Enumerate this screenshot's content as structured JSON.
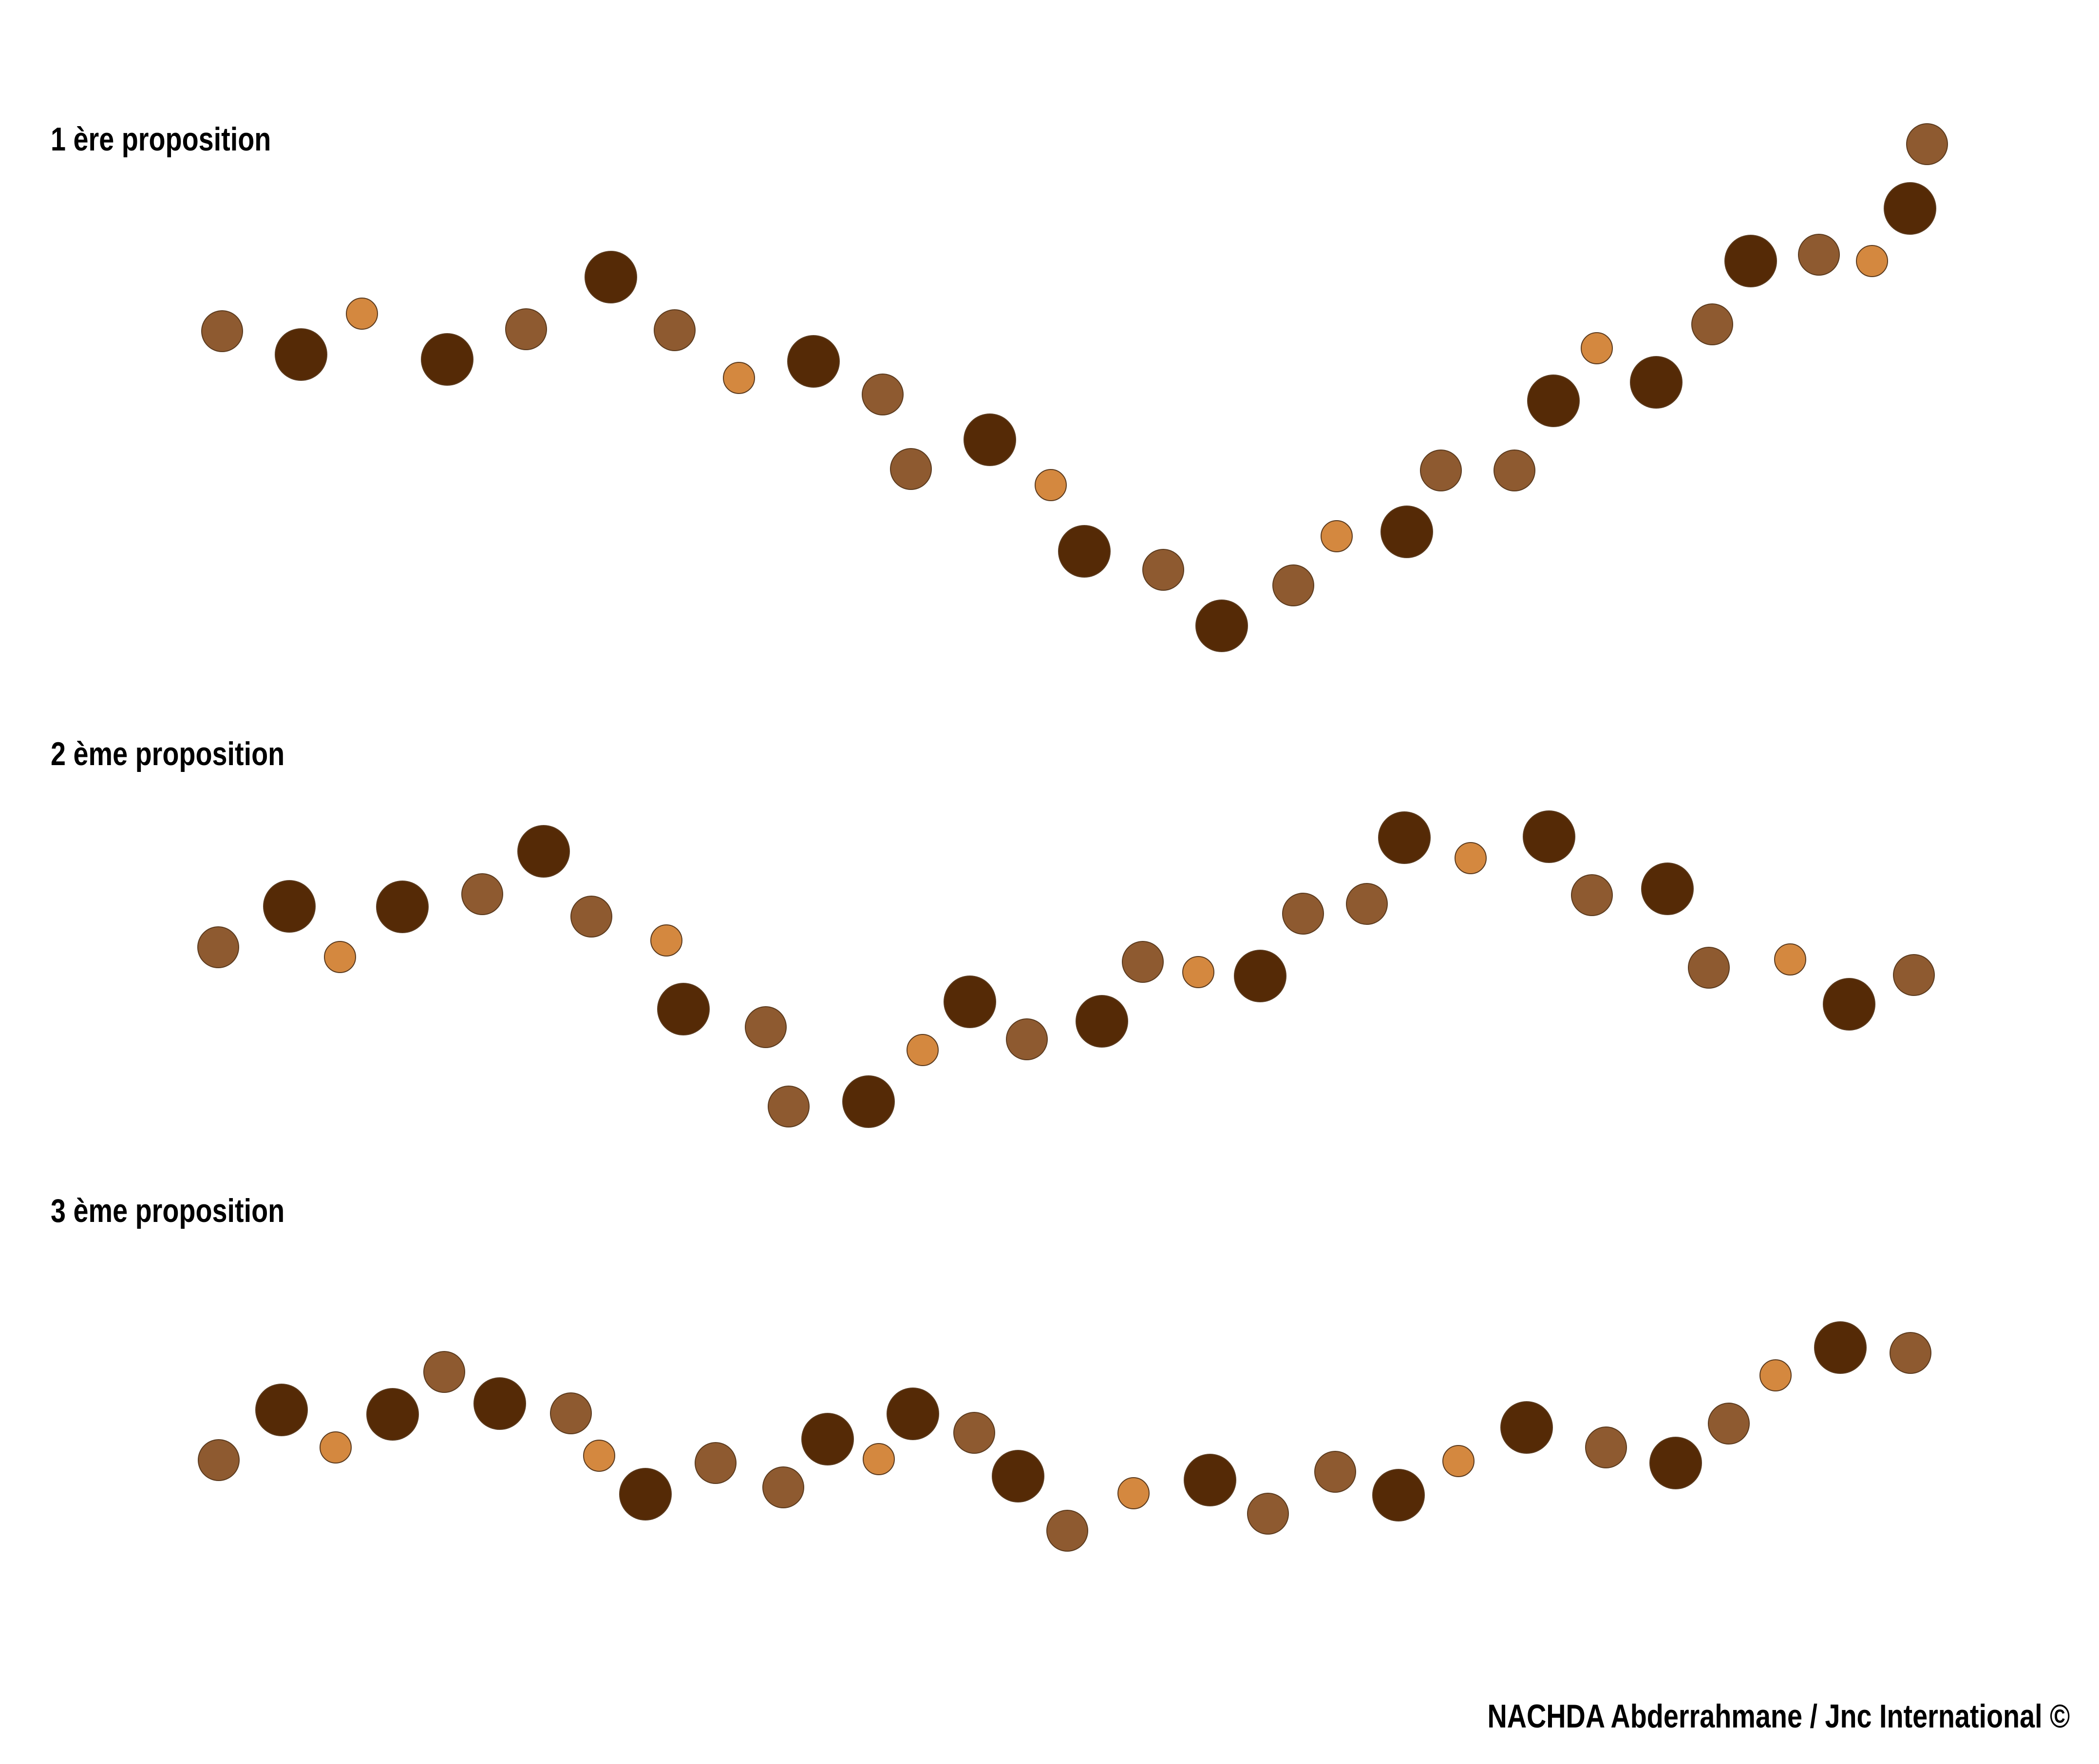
{
  "colors": {
    "large": "#552a06",
    "medium": "#8e5a30",
    "small": "#d4883f",
    "outline": "#5a3a1e"
  },
  "propositions": [
    {
      "title": "1 ère proposition",
      "dots": [
        {
          "size": "medium",
          "shade": "medium"
        },
        {
          "size": "large",
          "shade": "large"
        },
        {
          "size": "small",
          "shade": "small"
        },
        {
          "size": "large",
          "shade": "large"
        },
        {
          "size": "medium",
          "shade": "medium"
        },
        {
          "size": "large",
          "shade": "large"
        },
        {
          "size": "medium",
          "shade": "medium"
        },
        {
          "size": "small",
          "shade": "small"
        },
        {
          "size": "large",
          "shade": "large"
        },
        {
          "size": "medium",
          "shade": "medium"
        },
        {
          "size": "medium",
          "shade": "medium"
        },
        {
          "size": "large",
          "shade": "large"
        },
        {
          "size": "small",
          "shade": "small"
        },
        {
          "size": "large",
          "shade": "large"
        },
        {
          "size": "medium",
          "shade": "medium"
        },
        {
          "size": "large",
          "shade": "large"
        },
        {
          "size": "medium",
          "shade": "medium"
        },
        {
          "size": "small",
          "shade": "small"
        },
        {
          "size": "large",
          "shade": "large"
        },
        {
          "size": "medium",
          "shade": "medium"
        },
        {
          "size": "medium",
          "shade": "medium"
        },
        {
          "size": "large",
          "shade": "large"
        },
        {
          "size": "small",
          "shade": "small"
        },
        {
          "size": "large",
          "shade": "large"
        },
        {
          "size": "medium",
          "shade": "medium"
        },
        {
          "size": "large",
          "shade": "large"
        },
        {
          "size": "medium",
          "shade": "medium"
        },
        {
          "size": "small",
          "shade": "small"
        },
        {
          "size": "large",
          "shade": "large"
        },
        {
          "size": "medium",
          "shade": "medium"
        }
      ]
    },
    {
      "title": "2 ème proposition",
      "dots": [
        {
          "size": "medium",
          "shade": "medium"
        },
        {
          "size": "large",
          "shade": "large"
        },
        {
          "size": "small",
          "shade": "small"
        },
        {
          "size": "large",
          "shade": "large"
        },
        {
          "size": "medium",
          "shade": "medium"
        },
        {
          "size": "large",
          "shade": "large"
        },
        {
          "size": "medium",
          "shade": "medium"
        },
        {
          "size": "small",
          "shade": "small"
        },
        {
          "size": "large",
          "shade": "large"
        },
        {
          "size": "medium",
          "shade": "medium"
        },
        {
          "size": "medium",
          "shade": "medium"
        },
        {
          "size": "large",
          "shade": "large"
        },
        {
          "size": "small",
          "shade": "small"
        },
        {
          "size": "large",
          "shade": "large"
        },
        {
          "size": "medium",
          "shade": "medium"
        },
        {
          "size": "large",
          "shade": "large"
        },
        {
          "size": "medium",
          "shade": "medium"
        },
        {
          "size": "small",
          "shade": "small"
        },
        {
          "size": "large",
          "shade": "large"
        },
        {
          "size": "medium",
          "shade": "medium"
        },
        {
          "size": "medium",
          "shade": "medium"
        },
        {
          "size": "large",
          "shade": "large"
        },
        {
          "size": "small",
          "shade": "small"
        },
        {
          "size": "large",
          "shade": "large"
        },
        {
          "size": "medium",
          "shade": "medium"
        },
        {
          "size": "large",
          "shade": "large"
        },
        {
          "size": "medium",
          "shade": "medium"
        },
        {
          "size": "small",
          "shade": "small"
        },
        {
          "size": "large",
          "shade": "large"
        },
        {
          "size": "medium",
          "shade": "medium"
        }
      ]
    },
    {
      "title": "3 ème proposition",
      "dots": [
        {
          "size": "medium",
          "shade": "medium"
        },
        {
          "size": "large",
          "shade": "large"
        },
        {
          "size": "small",
          "shade": "small"
        },
        {
          "size": "large",
          "shade": "large"
        },
        {
          "size": "medium",
          "shade": "medium"
        },
        {
          "size": "large",
          "shade": "large"
        },
        {
          "size": "medium",
          "shade": "medium"
        },
        {
          "size": "small",
          "shade": "small"
        },
        {
          "size": "large",
          "shade": "large"
        },
        {
          "size": "medium",
          "shade": "medium"
        },
        {
          "size": "medium",
          "shade": "medium"
        },
        {
          "size": "large",
          "shade": "large"
        },
        {
          "size": "small",
          "shade": "small"
        },
        {
          "size": "large",
          "shade": "large"
        },
        {
          "size": "medium",
          "shade": "medium"
        },
        {
          "size": "large",
          "shade": "large"
        },
        {
          "size": "medium",
          "shade": "medium"
        },
        {
          "size": "small",
          "shade": "small"
        },
        {
          "size": "large",
          "shade": "large"
        },
        {
          "size": "medium",
          "shade": "medium"
        },
        {
          "size": "medium",
          "shade": "medium"
        },
        {
          "size": "large",
          "shade": "large"
        },
        {
          "size": "small",
          "shade": "small"
        },
        {
          "size": "large",
          "shade": "large"
        },
        {
          "size": "medium",
          "shade": "medium"
        },
        {
          "size": "large",
          "shade": "large"
        },
        {
          "size": "medium",
          "shade": "medium"
        },
        {
          "size": "small",
          "shade": "small"
        },
        {
          "size": "large",
          "shade": "large"
        },
        {
          "size": "medium",
          "shade": "medium"
        }
      ]
    }
  ],
  "credit": "NACHDA Abderrahmane / Jnc International  ©"
}
